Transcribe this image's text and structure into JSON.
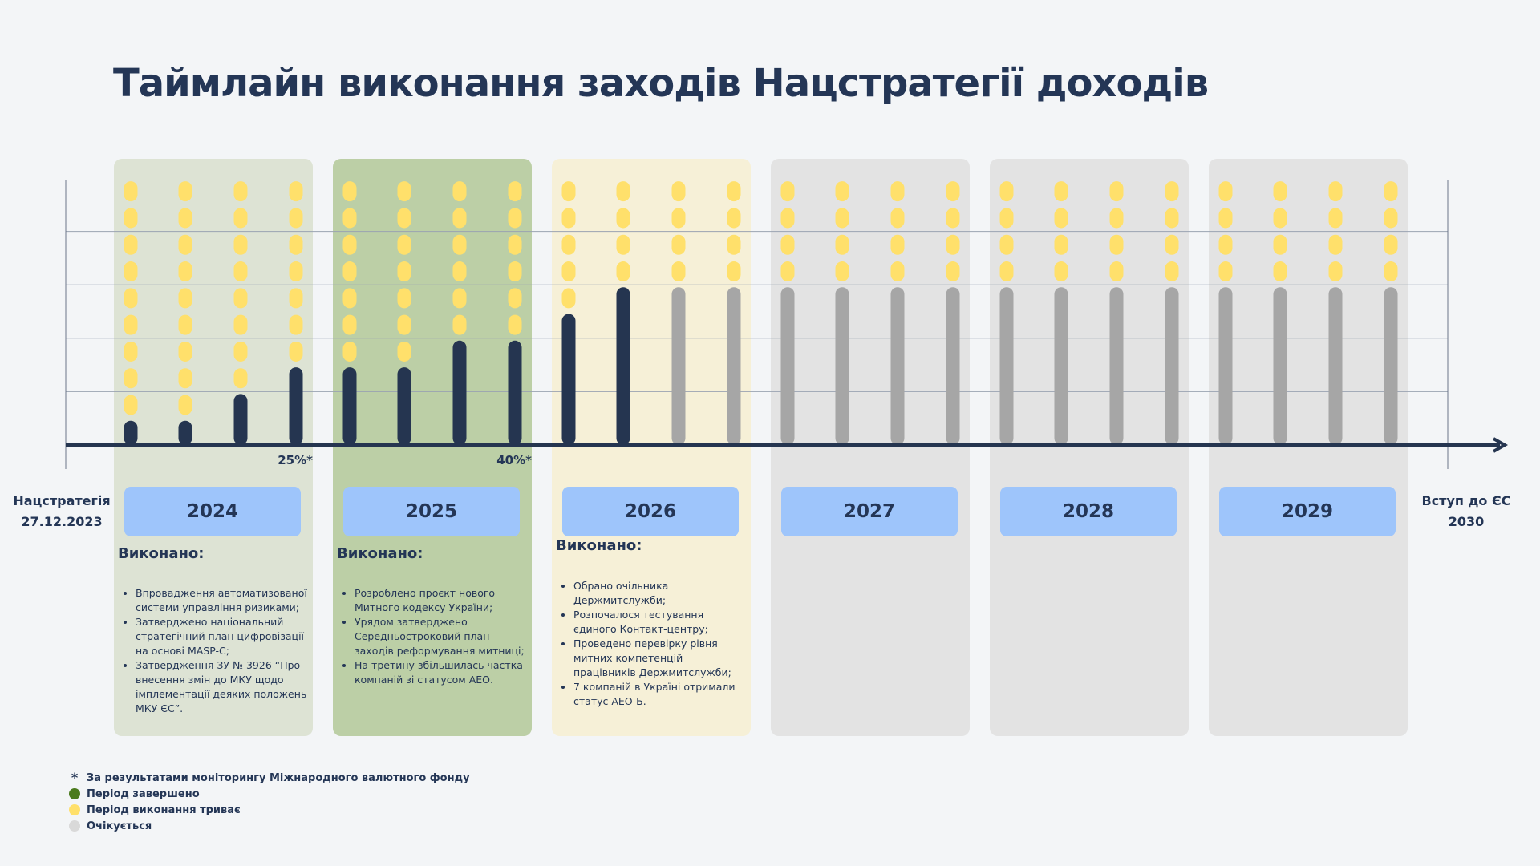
{
  "title": "Таймлайн виконання заходів Нацстратегії доходів",
  "start_label": [
    "Нацстратегія",
    "27.12.2023"
  ],
  "end_label": [
    "Вступ до ЄС",
    "2030"
  ],
  "chart": {
    "ylim": [
      0,
      10
    ],
    "yticks": [
      2,
      4,
      6,
      8
    ],
    "values": [
      1,
      1,
      2,
      3,
      3,
      3,
      4,
      4,
      5,
      6,
      6,
      6,
      6,
      6,
      6,
      6,
      6,
      6,
      6,
      6,
      6,
      6,
      6,
      6
    ],
    "colors": [
      "#253550",
      "#253550",
      "#253550",
      "#253550",
      "#253550",
      "#253550",
      "#253550",
      "#253550",
      "#253550",
      "#253550",
      "#a6a6a6",
      "#a6a6a6",
      "#a6a6a6",
      "#a6a6a6",
      "#a6a6a6",
      "#a6a6a6",
      "#a6a6a6",
      "#a6a6a6",
      "#a6a6a6",
      "#a6a6a6",
      "#a6a6a6",
      "#a6a6a6",
      "#a6a6a6",
      "#a6a6a6"
    ],
    "dot_color": "#ffe06b"
  },
  "years": [
    {
      "year": "2024",
      "color": "#dde3d4",
      "marker": "25%*",
      "heading": "Виконано:",
      "items": [
        "Впровадження автоматизованої системи управління ризиками;",
        "Затверджено національний стратегічний план цифровізації на основі MASP-C;",
        "Затвердження ЗУ № 3926 “Про внесення змін до МКУ щодо імплементації деяких положень МКУ ЄС”."
      ]
    },
    {
      "year": "2025",
      "color": "#bccfa6",
      "marker": "40%*",
      "heading": "Виконано:",
      "items": [
        "Розроблено проєкт нового Митного кодексу України;",
        "Урядом затверджено Середньостроковий план заходів реформування митниці;",
        "На третину збільшилась частка компаній зі статусом АЕО."
      ]
    },
    {
      "year": "2026",
      "color": "#f6f0d7",
      "heading": "Виконано:",
      "items": [
        "Обрано очільника Держмитслужби;",
        "Розпочалося тестування єдиного Контакт-центру;",
        "Проведено перевірку рівня митних компетенцій працівників Держмитслужби;",
        "7 компаній в Україні отримали статус АЕО-Б."
      ]
    },
    {
      "year": "2027",
      "color": "#e3e3e3"
    },
    {
      "year": "2028",
      "color": "#e3e3e3"
    },
    {
      "year": "2029",
      "color": "#e3e3e3"
    }
  ],
  "legend": [
    {
      "symbol": "*",
      "text": "За результатами моніторингу Міжнародного валютного фонду"
    },
    {
      "color": "#4a7a1c",
      "text": "Період завершено"
    },
    {
      "color": "#ffe06b",
      "text": "Період виконання триває"
    },
    {
      "color": "#d9d9d9",
      "text": "Очікується"
    }
  ]
}
